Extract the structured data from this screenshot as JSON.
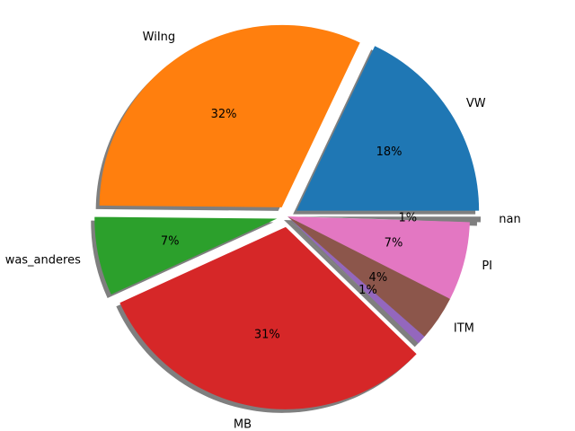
{
  "chart_data": {
    "type": "pie",
    "title": "",
    "shadow": true,
    "start_angle_deg": 0,
    "direction": "counterclockwise",
    "slices": [
      {
        "label": "VW",
        "value": 18,
        "pct_label": "18%",
        "color": "#1f77b4",
        "explode": true
      },
      {
        "label": "WiIng",
        "value": 32,
        "pct_label": "32%",
        "color": "#ff7f0e",
        "explode": true
      },
      {
        "label": "was_anderes",
        "value": 7,
        "pct_label": "7%",
        "color": "#2ca02c",
        "explode": true
      },
      {
        "label": "MB",
        "value": 31,
        "pct_label": "31%",
        "color": "#d62728",
        "explode": true
      },
      {
        "label": "",
        "value": 0.8,
        "pct_label": "1%",
        "color": "#9467bd",
        "explode": false
      },
      {
        "label": "ITM",
        "value": 4,
        "pct_label": "4%",
        "color": "#8c564b",
        "explode": false
      },
      {
        "label": "PI",
        "value": 7,
        "pct_label": "7%",
        "color": "#e377c2",
        "explode": false
      },
      {
        "label": "nan",
        "value": 0.5,
        "pct_label": "1%",
        "color": "#7f7f7f",
        "explode": true
      }
    ]
  }
}
